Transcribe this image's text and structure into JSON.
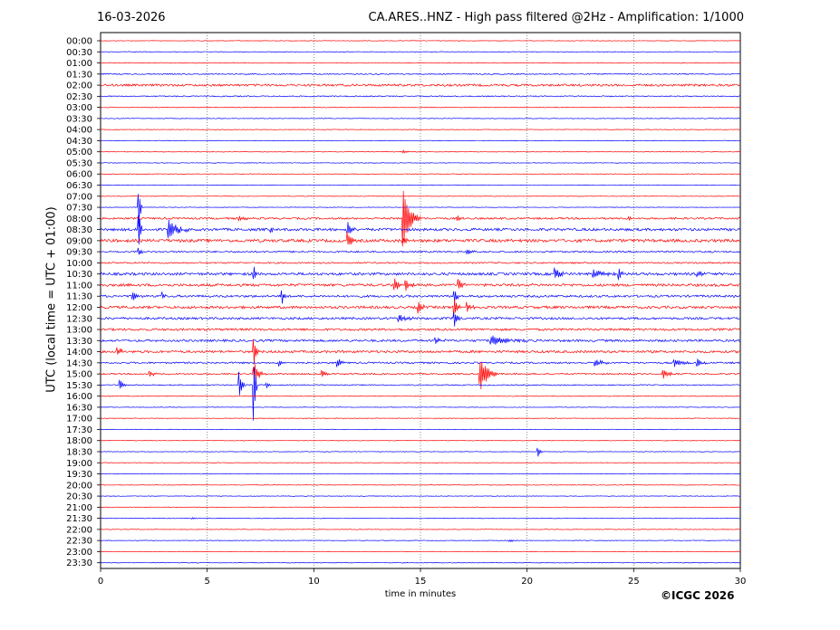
{
  "header": {
    "date": "16-03-2026",
    "title": "CA.ARES..HNZ - High pass filtered @2Hz - Amplification: 1/1000"
  },
  "footer": {
    "copyright": "©ICGC 2026"
  },
  "chart_data": {
    "type": "line",
    "title": "CA.ARES..HNZ - High pass filtered @2Hz - Amplification: 1/1000",
    "xlabel": "time in minutes",
    "ylabel": "UTC (local time = UTC + 01:00)",
    "xlim": [
      0,
      30
    ],
    "x_ticks": [
      0,
      5,
      10,
      15,
      20,
      25,
      30
    ],
    "grid": "vertical dotted lines at every 5 minutes",
    "trace_colors": [
      "#ff0000",
      "#0000ff"
    ],
    "rows": [
      "00:00",
      "00:30",
      "01:00",
      "01:30",
      "02:00",
      "02:30",
      "03:00",
      "03:30",
      "04:00",
      "04:30",
      "05:00",
      "05:30",
      "06:00",
      "06:30",
      "07:00",
      "07:30",
      "08:00",
      "08:30",
      "09:00",
      "09:30",
      "10:00",
      "10:30",
      "11:00",
      "11:30",
      "12:00",
      "12:30",
      "13:00",
      "13:30",
      "14:00",
      "14:30",
      "15:00",
      "15:30",
      "16:00",
      "16:30",
      "17:00",
      "17:30",
      "18:00",
      "18:30",
      "19:00",
      "19:30",
      "20:00",
      "20:30",
      "21:00",
      "21:30",
      "22:00",
      "22:30",
      "23:00",
      "23:30"
    ],
    "noise_level": [
      0.3,
      0.3,
      0.4,
      0.6,
      1.2,
      0.6,
      0.4,
      0.3,
      0.3,
      0.3,
      0.3,
      0.3,
      0.3,
      0.3,
      0.3,
      0.3,
      1.0,
      1.4,
      1.6,
      0.9,
      0.8,
      1.4,
      1.4,
      1.2,
      1.4,
      1.2,
      1.2,
      1.2,
      1.3,
      0.9,
      0.8,
      0.6,
      0.4,
      0.3,
      0.3,
      0.3,
      0.3,
      0.3,
      0.3,
      0.3,
      0.3,
      0.3,
      0.3,
      0.3,
      0.3,
      0.3,
      0.3,
      0.3
    ],
    "events": [
      {
        "row": "05:00",
        "minute": 14.2,
        "amp": 1.5,
        "dur": 0.8
      },
      {
        "row": "07:30",
        "minute": 1.8,
        "amp": 25,
        "dur": 0.15
      },
      {
        "row": "08:00",
        "minute": 6.5,
        "amp": 3,
        "dur": 0.8
      },
      {
        "row": "08:00",
        "minute": 14.2,
        "amp": 32,
        "dur": 0.8
      },
      {
        "row": "08:00",
        "minute": 16.7,
        "amp": 3,
        "dur": 0.5
      },
      {
        "row": "08:00",
        "minute": 24.8,
        "amp": 3,
        "dur": 0.4
      },
      {
        "row": "08:30",
        "minute": 1.8,
        "amp": 18,
        "dur": 0.2
      },
      {
        "row": "08:30",
        "minute": 3.2,
        "amp": 12,
        "dur": 1.0
      },
      {
        "row": "08:30",
        "minute": 8.0,
        "amp": 3,
        "dur": 0.3
      },
      {
        "row": "08:30",
        "minute": 11.6,
        "amp": 8,
        "dur": 0.4
      },
      {
        "row": "09:00",
        "minute": 11.6,
        "amp": 10,
        "dur": 0.3
      },
      {
        "row": "09:00",
        "minute": 14.2,
        "amp": 5,
        "dur": 0.5
      },
      {
        "row": "09:30",
        "minute": 17.2,
        "amp": 5,
        "dur": 0.5
      },
      {
        "row": "09:30",
        "minute": 1.8,
        "amp": 5,
        "dur": 0.2
      },
      {
        "row": "10:30",
        "minute": 7.2,
        "amp": 8,
        "dur": 0.2
      },
      {
        "row": "10:30",
        "minute": 21.3,
        "amp": 7,
        "dur": 0.6
      },
      {
        "row": "10:30",
        "minute": 23.1,
        "amp": 5,
        "dur": 1.2
      },
      {
        "row": "10:30",
        "minute": 24.3,
        "amp": 8,
        "dur": 0.2
      },
      {
        "row": "10:30",
        "minute": 28.0,
        "amp": 5,
        "dur": 0.5
      },
      {
        "row": "11:00",
        "minute": 13.8,
        "amp": 7,
        "dur": 0.5
      },
      {
        "row": "11:00",
        "minute": 14.3,
        "amp": 9,
        "dur": 0.4
      },
      {
        "row": "11:00",
        "minute": 16.8,
        "amp": 8,
        "dur": 0.3
      },
      {
        "row": "11:30",
        "minute": 1.5,
        "amp": 6,
        "dur": 0.5
      },
      {
        "row": "11:30",
        "minute": 2.9,
        "amp": 5,
        "dur": 0.2
      },
      {
        "row": "11:30",
        "minute": 8.5,
        "amp": 10,
        "dur": 0.2
      },
      {
        "row": "11:30",
        "minute": 16.6,
        "amp": 8,
        "dur": 0.3
      },
      {
        "row": "12:00",
        "minute": 14.9,
        "amp": 7,
        "dur": 0.4
      },
      {
        "row": "12:00",
        "minute": 16.6,
        "amp": 12,
        "dur": 0.3
      },
      {
        "row": "12:00",
        "minute": 17.2,
        "amp": 6,
        "dur": 0.4
      },
      {
        "row": "12:30",
        "minute": 14.0,
        "amp": 4,
        "dur": 0.8
      },
      {
        "row": "12:30",
        "minute": 16.6,
        "amp": 10,
        "dur": 0.3
      },
      {
        "row": "13:30",
        "minute": 18.3,
        "amp": 6,
        "dur": 1.8
      },
      {
        "row": "13:30",
        "minute": 15.7,
        "amp": 5,
        "dur": 0.5
      },
      {
        "row": "14:00",
        "minute": 0.8,
        "amp": 5,
        "dur": 0.6
      },
      {
        "row": "14:00",
        "minute": 7.2,
        "amp": 15,
        "dur": 0.3
      },
      {
        "row": "14:30",
        "minute": 8.4,
        "amp": 4,
        "dur": 0.3
      },
      {
        "row": "14:30",
        "minute": 11.1,
        "amp": 7,
        "dur": 0.4
      },
      {
        "row": "14:30",
        "minute": 23.2,
        "amp": 5,
        "dur": 0.8
      },
      {
        "row": "14:30",
        "minute": 26.9,
        "amp": 5,
        "dur": 0.8
      },
      {
        "row": "14:30",
        "minute": 28.0,
        "amp": 4,
        "dur": 0.6
      },
      {
        "row": "15:00",
        "minute": 2.3,
        "amp": 4,
        "dur": 0.4
      },
      {
        "row": "15:00",
        "minute": 7.2,
        "amp": 12,
        "dur": 0.6
      },
      {
        "row": "15:00",
        "minute": 10.4,
        "amp": 4,
        "dur": 0.5
      },
      {
        "row": "15:00",
        "minute": 17.8,
        "amp": 22,
        "dur": 0.8
      },
      {
        "row": "15:00",
        "minute": 26.4,
        "amp": 5,
        "dur": 0.6
      },
      {
        "row": "15:30",
        "minute": 0.9,
        "amp": 7,
        "dur": 0.3
      },
      {
        "row": "15:30",
        "minute": 6.5,
        "amp": 16,
        "dur": 0.3
      },
      {
        "row": "15:30",
        "minute": 7.2,
        "amp": 40,
        "dur": 0.15
      },
      {
        "row": "15:30",
        "minute": 7.8,
        "amp": 4,
        "dur": 0.3
      },
      {
        "row": "18:30",
        "minute": 20.5,
        "amp": 7,
        "dur": 0.2
      },
      {
        "row": "21:30",
        "minute": 4.3,
        "amp": 1.5,
        "dur": 0.3
      },
      {
        "row": "22:30",
        "minute": 19.2,
        "amp": 1.5,
        "dur": 0.5
      }
    ]
  }
}
